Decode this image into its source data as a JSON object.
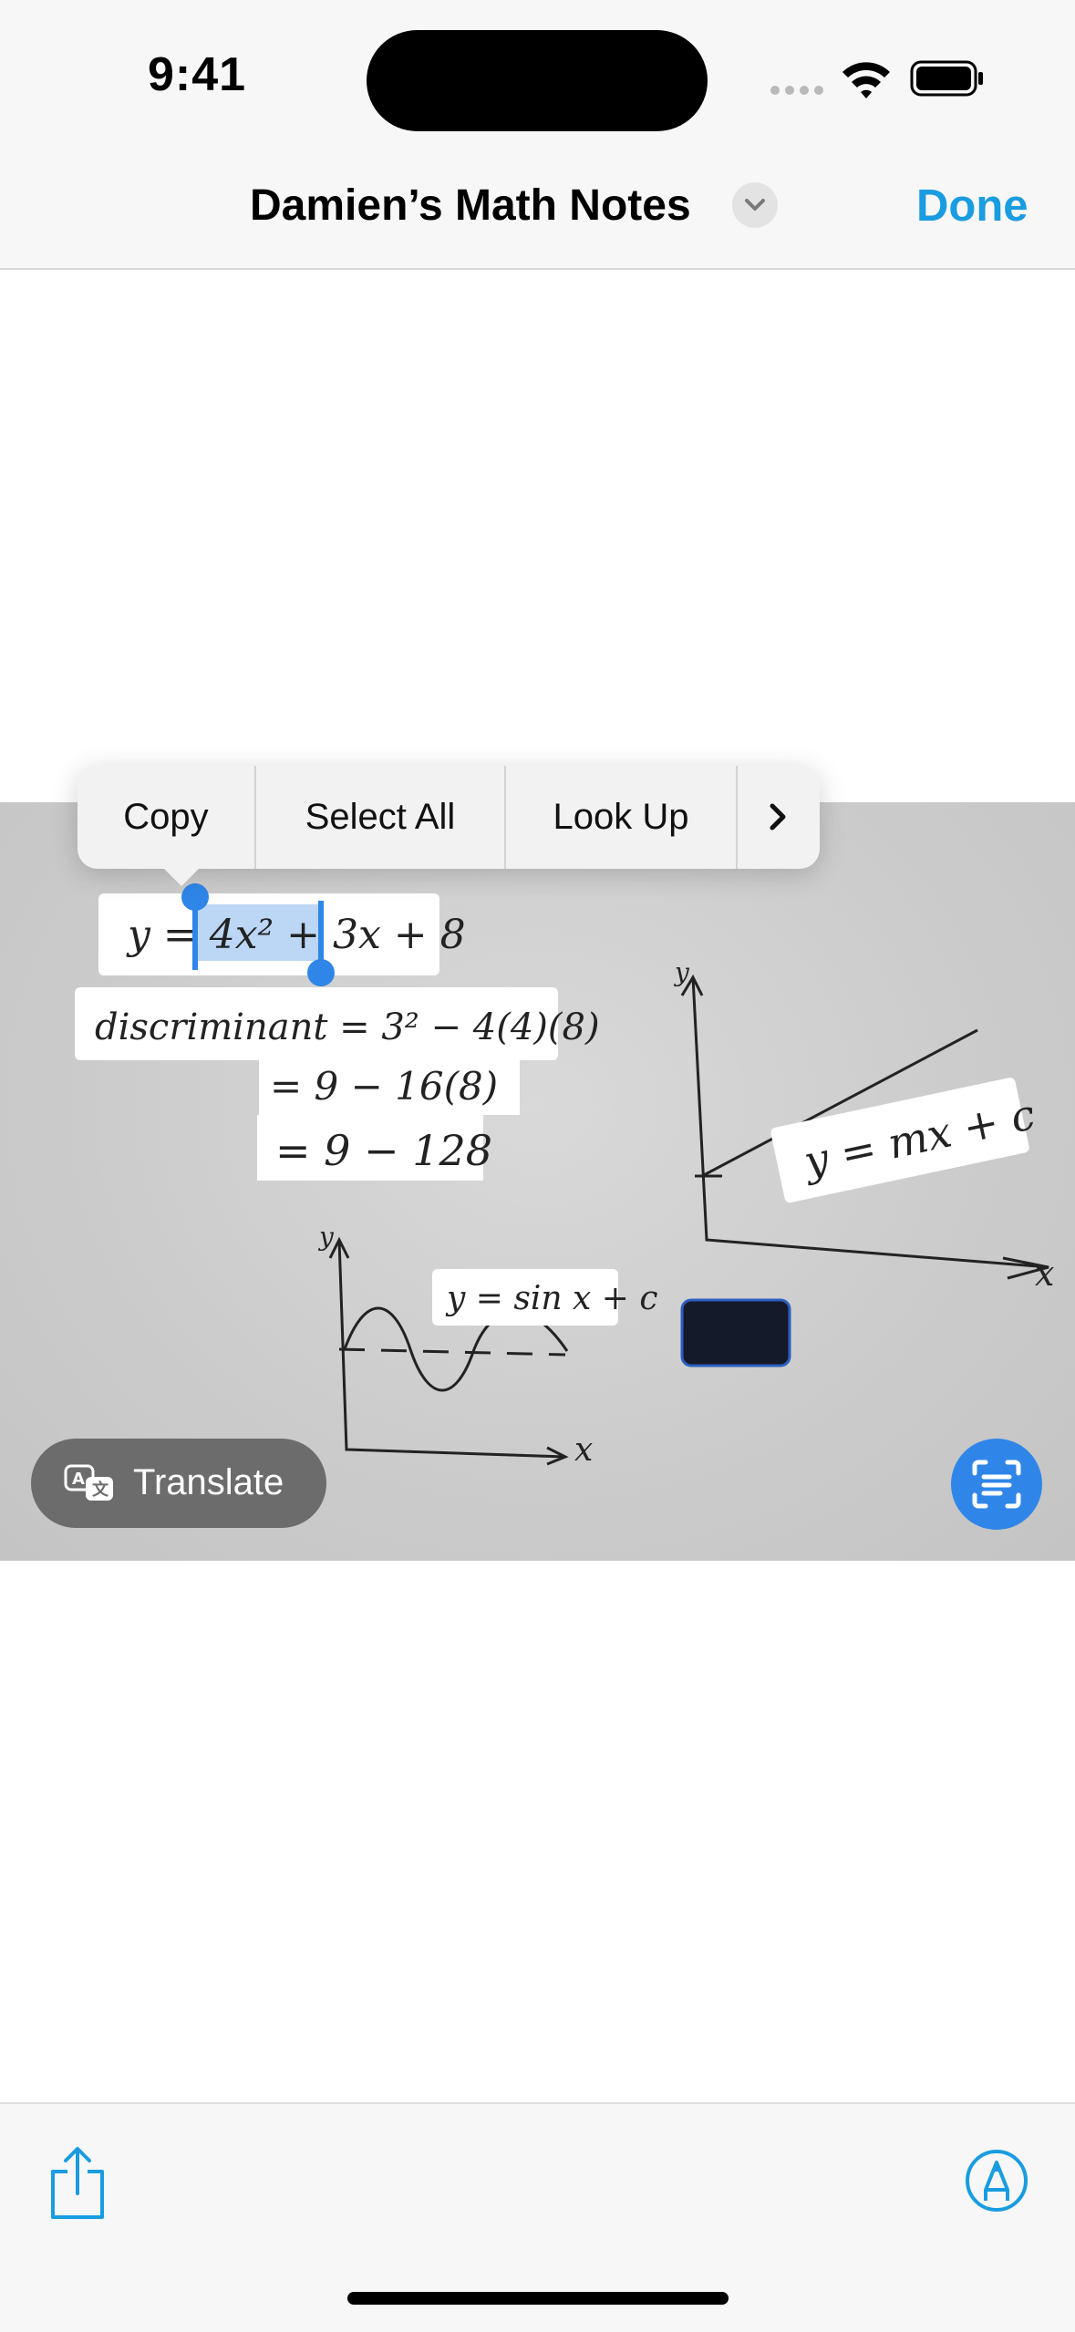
{
  "status_bar": {
    "time": "9:41"
  },
  "nav": {
    "title": "Damien’s Math Notes",
    "done_label": "Done"
  },
  "context_menu": {
    "items": [
      {
        "label": "Copy"
      },
      {
        "label": "Select All"
      },
      {
        "label": "Look Up"
      }
    ],
    "more_icon": "chevron-right-icon"
  },
  "photo": {
    "notes": {
      "equation": "y = 4x² + 3x + 8",
      "discriminant_line1": "discriminant = 3² − 4(4)(8)",
      "discriminant_line2": "= 9 − 16(8)",
      "discriminant_line3": "= 9 − 128",
      "linear": "y = mx + c",
      "sine": "y = sin x + c",
      "axis_y": "y",
      "axis_x": "x"
    }
  },
  "translate": {
    "label": "Translate",
    "icon": "translate-icon"
  },
  "toolbar": {
    "share_icon": "share-icon",
    "markup_icon": "markup-icon",
    "live_text_icon": "live-text-icon"
  },
  "colors": {
    "accent": "#1a9ce0",
    "selection": "#2f86e8",
    "photo_bg": "#cfcfcf"
  }
}
